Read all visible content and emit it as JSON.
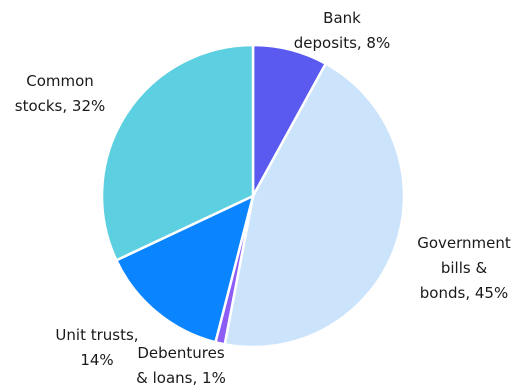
{
  "chart_data": {
    "type": "pie",
    "title": "",
    "slices": [
      {
        "label": "Bank deposits",
        "value": 8,
        "text": [
          "Bank",
          "deposits, 8%"
        ],
        "color": "#5a5af0"
      },
      {
        "label": "Government bills & bonds",
        "value": 45,
        "text": [
          "Government",
          "bills &",
          "bonds, 45%"
        ],
        "color": "#cce4fb"
      },
      {
        "label": "Debentures & loans",
        "value": 1,
        "text": [
          "Debentures",
          "& loans, 1%"
        ],
        "color": "#8b5cf6"
      },
      {
        "label": "Unit trusts",
        "value": 14,
        "text": [
          "Unit trusts,",
          "14%"
        ],
        "color": "#0a84ff"
      },
      {
        "label": "Common stocks",
        "value": 32,
        "text": [
          "Common",
          "stocks, 32%"
        ],
        "color": "#5ccfe0"
      }
    ],
    "start_angle": "12 o'clock",
    "direction": "clockwise",
    "legend": "none"
  }
}
